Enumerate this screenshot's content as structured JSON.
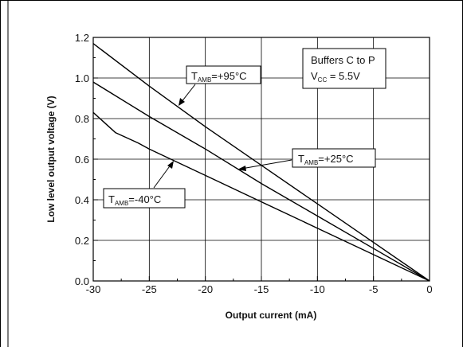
{
  "chart_data": {
    "type": "line",
    "xlabel": "Output current (mA)",
    "ylabel": "Low level output voltage (V)",
    "xlim": [
      -30,
      0
    ],
    "ylim": [
      0.0,
      1.2
    ],
    "x_ticks": [
      "-30",
      "-25",
      "-20",
      "-15",
      "-10",
      "-5",
      "0"
    ],
    "y_ticks": [
      "0.0",
      "0.2",
      "0.4",
      "0.6",
      "0.8",
      "1.0",
      "1.2"
    ],
    "grid": true,
    "series": [
      {
        "name": "TAMB=+95°C",
        "x": [
          -30,
          -25,
          -20,
          -15,
          -10,
          -5,
          0
        ],
        "y": [
          1.17,
          0.96,
          0.76,
          0.57,
          0.38,
          0.19,
          0.0
        ]
      },
      {
        "name": "TAMB=+25°C",
        "x": [
          -30,
          -25,
          -20,
          -15,
          -10,
          -5,
          0
        ],
        "y": [
          0.98,
          0.81,
          0.65,
          0.48,
          0.32,
          0.16,
          0.0
        ]
      },
      {
        "name": "TAMB=-40°C",
        "x": [
          -30,
          -28,
          -26,
          -25,
          -20,
          -15,
          -10,
          -5,
          0
        ],
        "y": [
          0.83,
          0.73,
          0.68,
          0.65,
          0.52,
          0.39,
          0.26,
          0.13,
          0.0
        ]
      }
    ],
    "annotations": [
      {
        "main": "T",
        "sub": "AMB",
        "rest": "=+95°C"
      },
      {
        "main": "T",
        "sub": "AMB",
        "rest": "=+25°C"
      },
      {
        "main": "T",
        "sub": "AMB",
        "rest": "=-40°C"
      }
    ],
    "info_box": {
      "line1": "Buffers C to P",
      "line2_main": "V",
      "line2_sub": "CC",
      "line2_rest": " = 5.5V"
    }
  },
  "colors": {
    "line": "#000000",
    "grid": "#000000",
    "frame": "#000000"
  }
}
